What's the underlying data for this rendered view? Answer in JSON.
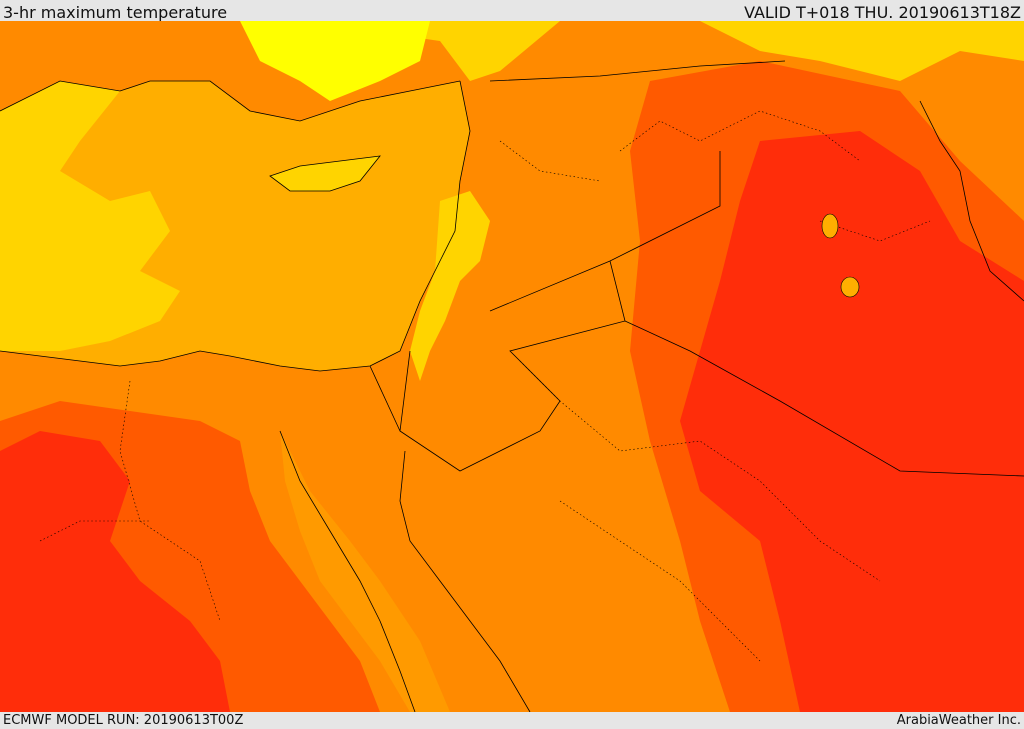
{
  "header": {
    "title": "3-hr maximum temperature",
    "valid": "VALID T+018 THU. 20190613T18Z"
  },
  "footer": {
    "model_run": "ECMWF MODEL RUN: 20190613T00Z",
    "credit": "ArabiaWeather Inc."
  },
  "colors": {
    "sea": "#ffae00",
    "cool_land": "#ffd400",
    "coolest": "#ffff00",
    "warm": "#ff8800",
    "hot": "#ff5a00",
    "hottest": "#ff2d0a",
    "border": "#000000"
  }
}
